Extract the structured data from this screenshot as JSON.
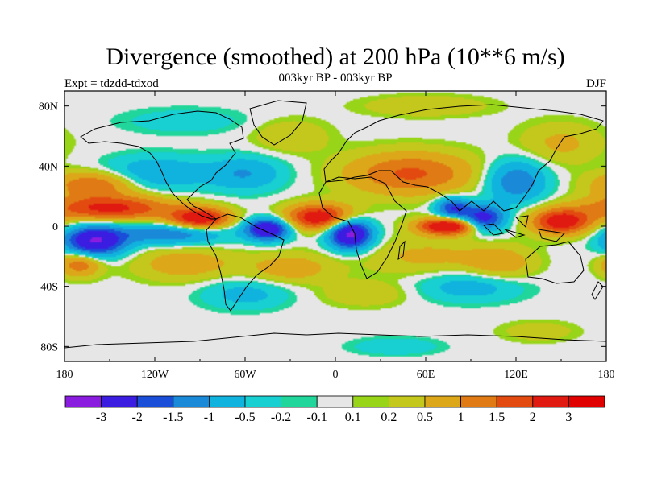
{
  "chart_data": {
    "type": "heatmap",
    "title": "Divergence (smoothed) at 200 hPa (10**6 m/s)",
    "subtitle": "003kyr BP - 003kyr BP",
    "left_label": "Expt = tdzdd-tdxod",
    "right_label": "DJF",
    "xlim": [
      -180,
      180
    ],
    "ylim": [
      -90,
      90
    ],
    "x_ticks": [
      {
        "value": -180,
        "label": "180"
      },
      {
        "value": -120,
        "label": "120W"
      },
      {
        "value": -60,
        "label": "60W"
      },
      {
        "value": 0,
        "label": "0"
      },
      {
        "value": 60,
        "label": "60E"
      },
      {
        "value": 120,
        "label": "120E"
      },
      {
        "value": 180,
        "label": "180"
      }
    ],
    "y_ticks": [
      {
        "value": 80,
        "label": "80N"
      },
      {
        "value": 40,
        "label": "40N"
      },
      {
        "value": 0,
        "label": "0"
      },
      {
        "value": -40,
        "label": "40S"
      },
      {
        "value": -80,
        "label": "80S"
      }
    ],
    "colorbar": {
      "levels": [
        "-3",
        "-2",
        "-1.5",
        "-1",
        "-0.5",
        "-0.2",
        "-0.1",
        "0.1",
        "0.2",
        "0.5",
        "1",
        "1.5",
        "2",
        "3"
      ],
      "colors": [
        "#8a1ce0",
        "#3a1de0",
        "#1a4ed8",
        "#1a8ad8",
        "#10b2de",
        "#18cfd2",
        "#20d69a",
        "#e6e6e6",
        "#98d418",
        "#c4c81c",
        "#dca81a",
        "#e07a14",
        "#e24a10",
        "#e01a10",
        "#e00000"
      ]
    },
    "approx_features": [
      {
        "lon": -160,
        "lat": -10,
        "value": -3,
        "sx": 14,
        "sy": 7
      },
      {
        "lon": -45,
        "lat": -2,
        "value": -3,
        "sx": 10,
        "sy": 5
      },
      {
        "lon": 10,
        "lat": -5,
        "value": -3.4,
        "sx": 10,
        "sy": 7
      },
      {
        "lon": 98,
        "lat": 5,
        "value": -2.5,
        "sx": 10,
        "sy": 6
      },
      {
        "lon": 78,
        "lat": 12,
        "value": -2,
        "sx": 8,
        "sy": 5
      },
      {
        "lon": -110,
        "lat": -5,
        "value": -1.5,
        "sx": 26,
        "sy": 5
      },
      {
        "lon": -150,
        "lat": 12,
        "value": 2.2,
        "sx": 30,
        "sy": 6
      },
      {
        "lon": -90,
        "lat": 5,
        "value": 2.6,
        "sx": 14,
        "sy": 5
      },
      {
        "lon": -10,
        "lat": 6,
        "value": 2.6,
        "sx": 16,
        "sy": 6
      },
      {
        "lon": 75,
        "lat": 0,
        "value": 3,
        "sx": 14,
        "sy": 4
      },
      {
        "lon": 150,
        "lat": 3,
        "value": 2.5,
        "sx": 14,
        "sy": 6
      },
      {
        "lon": -160,
        "lat": 28,
        "value": 1.5,
        "sx": 20,
        "sy": 6
      },
      {
        "lon": 50,
        "lat": 35,
        "value": 1.6,
        "sx": 30,
        "sy": 10
      },
      {
        "lon": 120,
        "lat": 30,
        "value": -1.5,
        "sx": 14,
        "sy": 10
      },
      {
        "lon": -120,
        "lat": 35,
        "value": -1,
        "sx": 24,
        "sy": 8
      },
      {
        "lon": -60,
        "lat": 35,
        "value": -1,
        "sx": 18,
        "sy": 8
      },
      {
        "lon": -30,
        "lat": 60,
        "value": 0.5,
        "sx": 18,
        "sy": 8
      },
      {
        "lon": 150,
        "lat": 55,
        "value": 0.6,
        "sx": 20,
        "sy": 10
      },
      {
        "lon": -170,
        "lat": -25,
        "value": 1.4,
        "sx": 10,
        "sy": 6
      },
      {
        "lon": -100,
        "lat": -25,
        "value": 0.8,
        "sx": 24,
        "sy": 8
      },
      {
        "lon": -30,
        "lat": -28,
        "value": 0.8,
        "sx": 20,
        "sy": 7
      },
      {
        "lon": 60,
        "lat": -20,
        "value": 0.6,
        "sx": 30,
        "sy": 9
      },
      {
        "lon": 110,
        "lat": -25,
        "value": 0.8,
        "sx": 16,
        "sy": 8
      },
      {
        "lon": -60,
        "lat": -45,
        "value": -0.7,
        "sx": 20,
        "sy": 7
      },
      {
        "lon": 90,
        "lat": -40,
        "value": -0.8,
        "sx": 24,
        "sy": 7
      },
      {
        "lon": 20,
        "lat": -45,
        "value": 0.5,
        "sx": 20,
        "sy": 6
      },
      {
        "lon": 60,
        "lat": 80,
        "value": 0.5,
        "sx": 30,
        "sy": 5
      },
      {
        "lon": -100,
        "lat": 70,
        "value": -0.4,
        "sx": 30,
        "sy": 6
      },
      {
        "lon": 40,
        "lat": -80,
        "value": -0.5,
        "sx": 20,
        "sy": 4
      },
      {
        "lon": 135,
        "lat": -70,
        "value": 0.4,
        "sx": 18,
        "sy": 5
      }
    ]
  }
}
